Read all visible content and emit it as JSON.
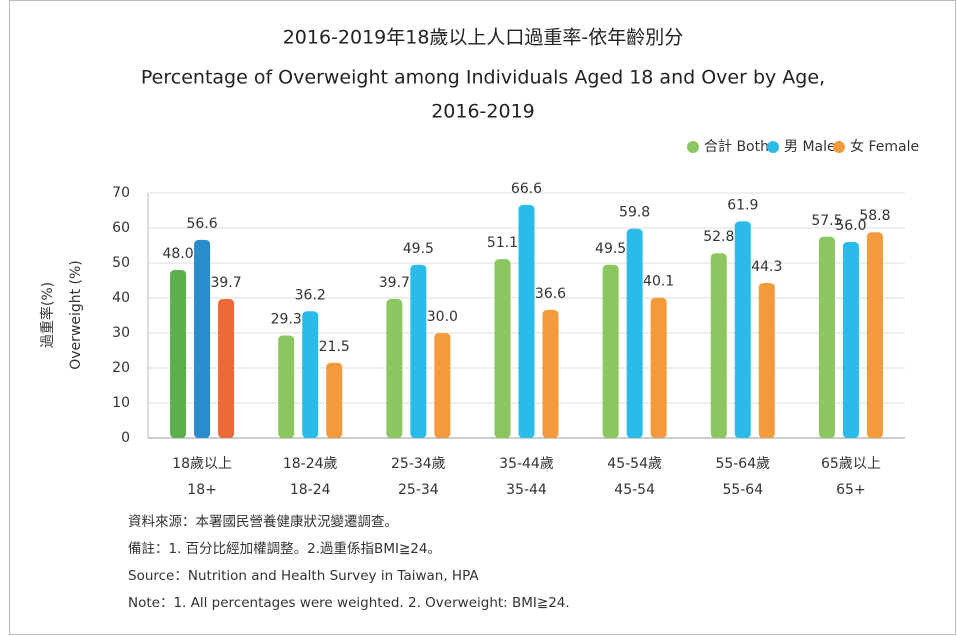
{
  "chart_data": {
    "type": "bar",
    "title": [
      "2016-2019年18歲以上人口過重率-依年齡別分",
      "Percentage of Overweight among Individuals Aged 18 and Over by Age,",
      "2016-2019"
    ],
    "y_label": [
      "過重率(%)",
      "Overweight (%)"
    ],
    "categories": [
      [
        "18歲以上",
        "18+"
      ],
      [
        "18-24歲",
        "18-24"
      ],
      [
        "25-34歲",
        "25-34"
      ],
      [
        "35-44歲",
        "35-44"
      ],
      [
        "45-54歲",
        "45-54"
      ],
      [
        "55-64歲",
        "55-64"
      ],
      [
        "65歲以上",
        "65+"
      ]
    ],
    "highlight_category": 0,
    "series": [
      {
        "name": "合計 Both",
        "color": "#8cc660",
        "highlight_color": "#5bb04c",
        "values": [
          48,
          29.3,
          39.7,
          51.1,
          49.5,
          52.8,
          57.5
        ],
        "value_labels": [
          "48.0",
          "29.3",
          "39.7",
          "51.1",
          "49.5",
          "52.8",
          "57.5"
        ]
      },
      {
        "name": "男 Male",
        "color": "#2bbbe8",
        "highlight_color": "#2a8cc8",
        "values": [
          56.6,
          36.2,
          49.5,
          66.6,
          59.8,
          61.9,
          56
        ],
        "value_labels": [
          "56.6",
          "36.2",
          "49.5",
          "66.6",
          "59.8",
          "61.9",
          "56.0"
        ]
      },
      {
        "name": "女 Female",
        "color": "#f39a3c",
        "highlight_color": "#ec6a38",
        "values": [
          39.7,
          21.5,
          30,
          36.6,
          40.1,
          44.3,
          58.8
        ],
        "value_labels": [
          "39.7",
          "21.5",
          "30.0",
          "36.6",
          "40.1",
          "44.3",
          "58.8"
        ]
      }
    ],
    "ylim": [
      0,
      70
    ],
    "yticks": [
      0,
      10,
      20,
      30,
      40,
      50,
      60,
      70
    ],
    "grid": true,
    "legend": "top-right",
    "notes": [
      "資料來源：本署國民營養健康狀況變遷調查。",
      "備註：1. 百分比經加權調整。2.過重係指BMI≧24。",
      "Source：Nutrition and Health Survey in Taiwan, HPA",
      "Note：1. All percentages were weighted.  2. Overweight: BMI≧24."
    ]
  }
}
